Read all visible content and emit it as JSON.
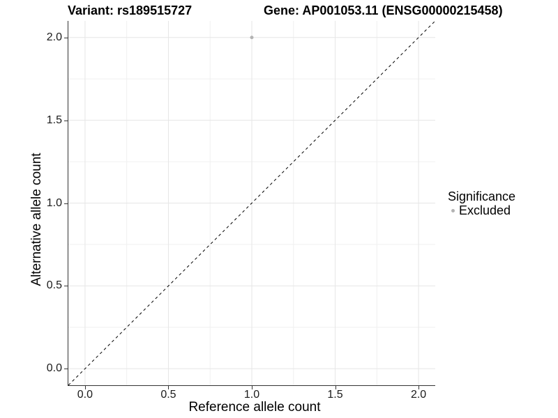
{
  "chart_data": {
    "type": "scatter",
    "title_left": "Variant: rs189515727",
    "title_right": "Gene: AP001053.11 (ENSG00000215458)",
    "xlabel": "Reference allele count",
    "ylabel": "Alternative allele count",
    "xlim": [
      -0.1,
      2.1
    ],
    "ylim": [
      -0.1,
      2.1
    ],
    "x_ticks": {
      "values": [
        0.0,
        0.5,
        1.0,
        1.5,
        2.0
      ],
      "labels": [
        "0.0",
        "0.5",
        "1.0",
        "1.5",
        "2.0"
      ]
    },
    "y_ticks": {
      "values": [
        0.0,
        0.5,
        1.0,
        1.5,
        2.0
      ],
      "labels": [
        "0.0",
        "0.5",
        "1.0",
        "1.5",
        "2.0"
      ]
    },
    "minor_breaks": [
      0.25,
      0.75,
      1.25,
      1.75
    ],
    "grid": true,
    "points": [
      {
        "x": 1.0,
        "y": 2.0,
        "series": "Excluded"
      }
    ],
    "identity_line": {
      "style": "dashed",
      "from": [
        -0.1,
        -0.1
      ],
      "to": [
        2.1,
        2.1
      ]
    },
    "legend": {
      "position": "right",
      "title": "Significance",
      "entries": [
        {
          "label": "Excluded",
          "color": "#b3b3b3",
          "marker": "circle"
        }
      ]
    }
  },
  "colors": {
    "point_excluded": "#b3b3b3",
    "grid_major": "#e6e6e6",
    "grid_minor": "#f0f0f0",
    "axis_line": "#333333",
    "identity_line": "#000000",
    "title_text": "#000000",
    "tick_text": "#1a1a1a"
  }
}
